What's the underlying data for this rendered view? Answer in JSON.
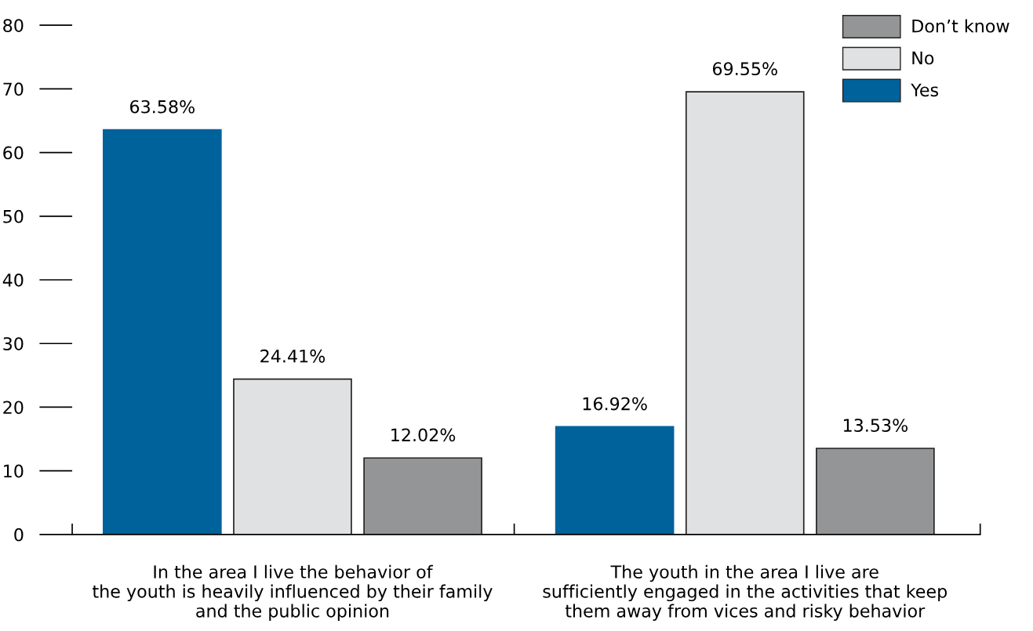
{
  "chart_data": {
    "type": "bar",
    "categories": [
      "In the area I live the behavior of\nthe youth is heavily influenced by their family\nand the public opinion",
      "The youth in the area I live are\nsufficiently engaged in the activities that keep\nthem away from vices and risky behavior"
    ],
    "series": [
      {
        "name": "Yes",
        "color": "#00629b",
        "values": [
          63.58,
          16.92
        ],
        "value_labels": [
          "63.58%",
          "16.92%"
        ]
      },
      {
        "name": "No",
        "color": "#e0e1e3",
        "values": [
          24.41,
          69.55
        ],
        "value_labels": [
          "24.41%",
          "69.55%"
        ]
      },
      {
        "name": "Don’t know",
        "color": "#949597",
        "values": [
          12.02,
          13.53
        ],
        "value_labels": [
          "12.02%",
          "13.53%"
        ]
      }
    ],
    "ylim": [
      0,
      80
    ],
    "yticks": [
      0,
      10,
      20,
      30,
      40,
      50,
      60,
      70,
      80
    ],
    "grid": false,
    "legend": "top right"
  }
}
